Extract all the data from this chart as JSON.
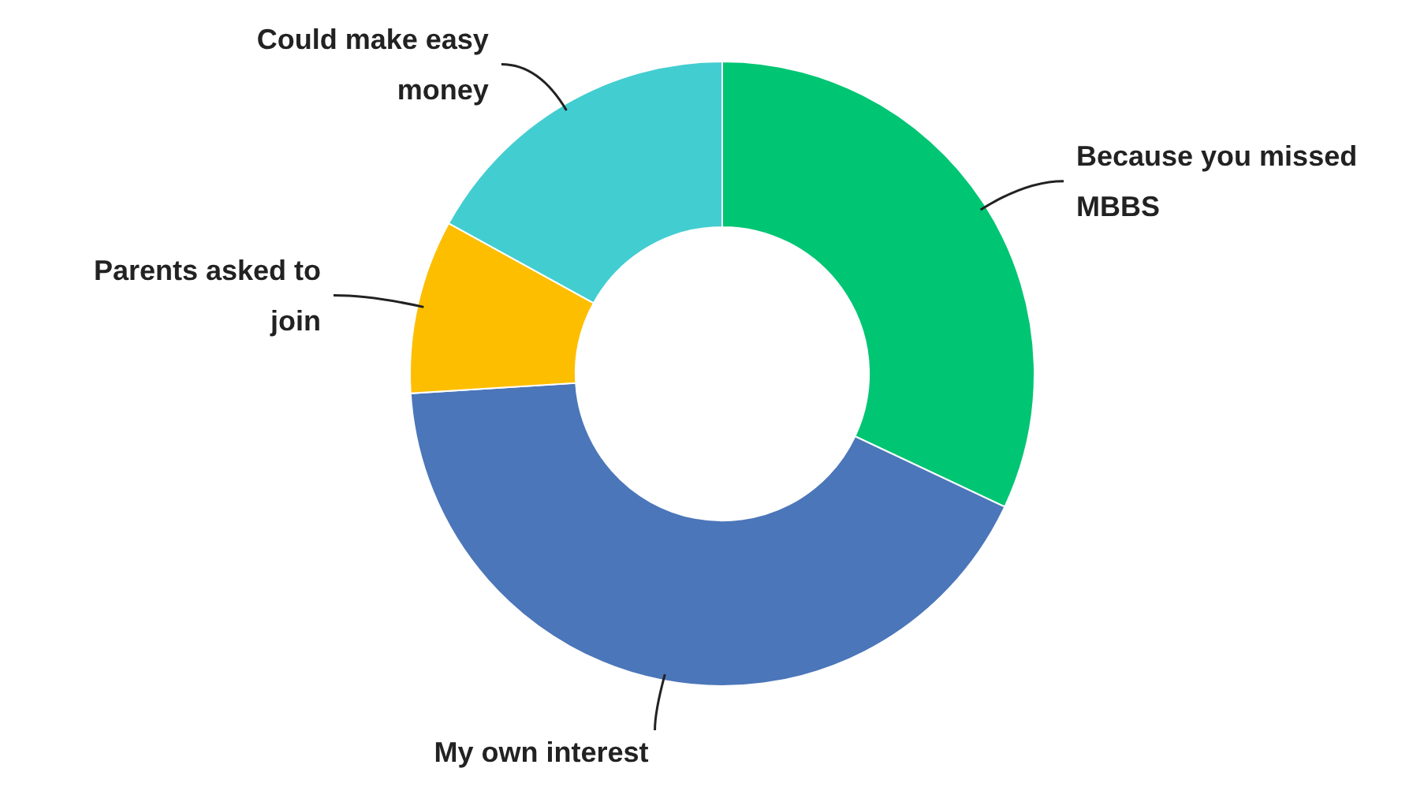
{
  "chart_data": {
    "type": "donut",
    "categories": [
      "Because you missed MBBS",
      "My own interest",
      "Parents asked to join",
      "Could make easy money"
    ],
    "values": [
      32,
      42,
      9,
      17
    ],
    "colors": [
      "#00c573",
      "#4b76b9",
      "#fdbe00",
      "#42cdd1"
    ]
  }
}
